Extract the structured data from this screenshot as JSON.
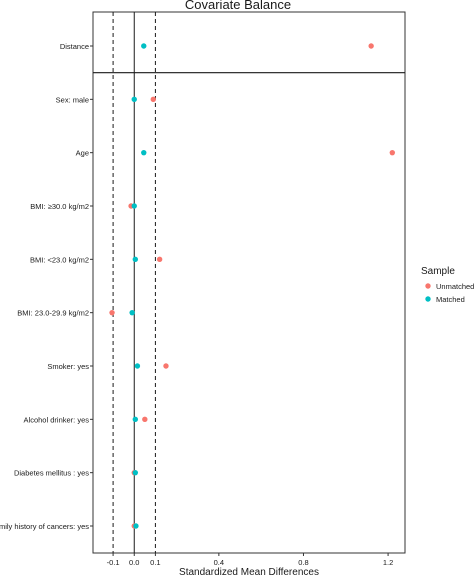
{
  "chart_data": {
    "type": "scatter",
    "title": "Covariate Balance",
    "xlabel": "Standardized Mean Differences",
    "ylabel": "",
    "xlim": [
      -0.195,
      1.28
    ],
    "x_ticks": [
      -0.1,
      0.0,
      0.1,
      0.4,
      0.8,
      1.2
    ],
    "x_tick_labels": [
      "-0.1",
      "0.0",
      "0.1",
      "0.4",
      "0.8",
      "1.2"
    ],
    "reference_lines": [
      {
        "x": 0.0,
        "style": "solid"
      },
      {
        "x": -0.1,
        "style": "dashed"
      },
      {
        "x": 0.1,
        "style": "dashed"
      }
    ],
    "separator_after_category": "Distance",
    "categories": [
      "Distance",
      "Sex: male",
      "Age",
      "BMI: ≥30.0 kg/m2",
      "BMI: <23.0 kg/m2",
      "BMI: 23.0-29.9 kg/m2",
      "Smoker: yes",
      "Alcohol drinker: yes",
      "Diabetes mellitus : yes",
      "Family history of cancers: yes"
    ],
    "series": [
      {
        "name": "Unmatched",
        "color": "#F8766D",
        "values": [
          1.12,
          0.09,
          1.22,
          -0.015,
          0.12,
          -0.105,
          0.15,
          0.05,
          0.0,
          0.0
        ]
      },
      {
        "name": "Matched",
        "color": "#00BFC4",
        "values": [
          0.045,
          0.0,
          0.045,
          0.0,
          0.005,
          -0.01,
          0.015,
          0.005,
          0.005,
          0.008
        ]
      }
    ],
    "legend": {
      "title": "Sample",
      "position": "right",
      "entries": [
        "Unmatched",
        "Matched"
      ]
    },
    "grid": false
  }
}
